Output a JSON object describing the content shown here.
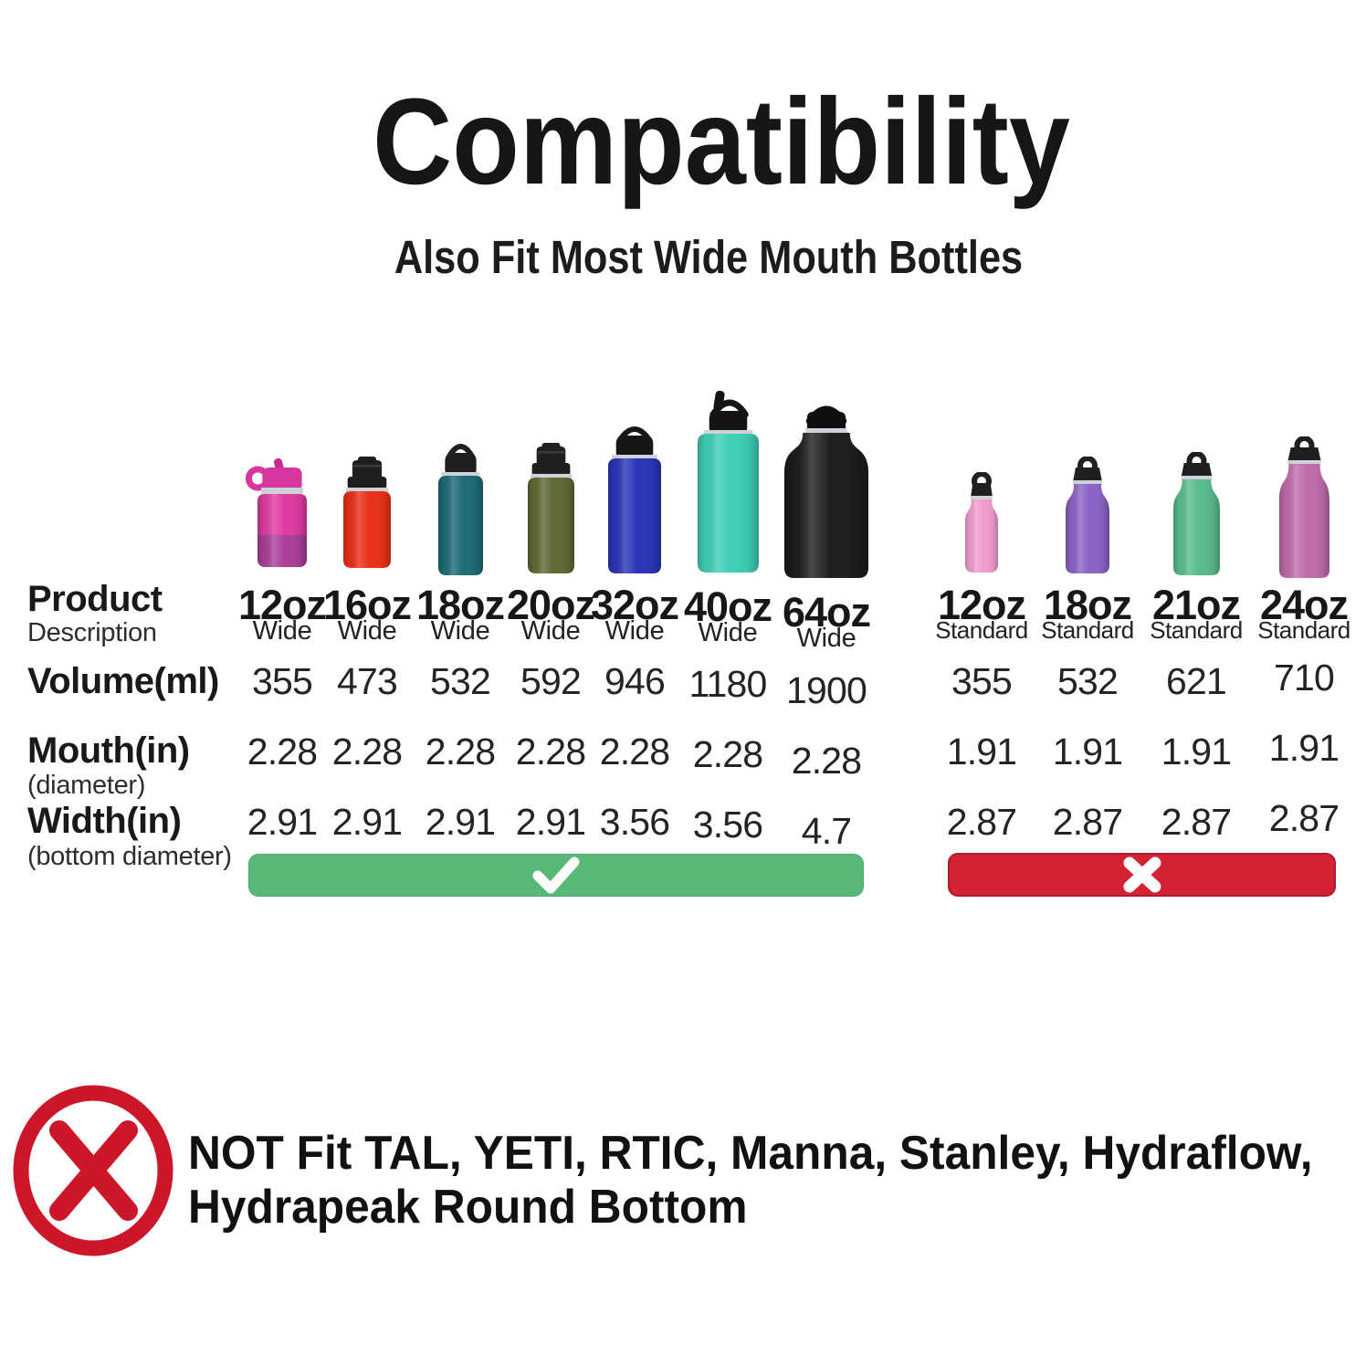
{
  "header": {
    "title": "Compatibility",
    "subtitle": "Also Fit Most Wide Mouth Bottles"
  },
  "row_labels": {
    "product_main": "Product",
    "product_sub": "Description",
    "volume_main": "Volume(ml)",
    "mouth_main": "Mouth(in)",
    "mouth_sub": "(diameter)",
    "width_main": "Width(in)",
    "width_sub": "(bottom diameter)"
  },
  "groups": [
    {
      "id": "wide",
      "fit": true,
      "bar_color": "#58b877",
      "bar_icon": "check-icon",
      "columns": [
        {
          "size": "12oz",
          "type": "Wide",
          "volume": "355",
          "mouth": "2.28",
          "width": "2.91",
          "bottle": {
            "style": "kids-straw",
            "body": "#df3ba3",
            "boot": "#ab3f99",
            "cap": "#d935a0",
            "straw": "#c52e90",
            "accent": "#ccd2d8"
          }
        },
        {
          "size": "16oz",
          "type": "Wide",
          "volume": "473",
          "mouth": "2.28",
          "width": "2.91",
          "bottle": {
            "style": "flip",
            "body": "#e93019",
            "cap": "#1e1e1e",
            "accent": "#ccd2d8"
          }
        },
        {
          "size": "18oz",
          "type": "Wide",
          "volume": "532",
          "mouth": "2.28",
          "width": "2.91",
          "bottle": {
            "style": "flex",
            "body": "#1d6b76",
            "cap": "#1f1f1f",
            "accent": "#ccd2d8"
          }
        },
        {
          "size": "20oz",
          "type": "Wide",
          "volume": "592",
          "mouth": "2.28",
          "width": "2.91",
          "bottle": {
            "style": "flip",
            "body": "#5f6a34",
            "cap": "#1f1f1f",
            "accent": "#ccd2d8"
          }
        },
        {
          "size": "32oz",
          "type": "Wide",
          "volume": "946",
          "mouth": "2.28",
          "width": "3.56",
          "bottle": {
            "style": "flex",
            "body": "#2b35b7",
            "cap": "#161616",
            "accent": "#ccd2d8"
          }
        },
        {
          "size": "40oz",
          "type": "Wide",
          "volume": "1180",
          "mouth": "2.28",
          "width": "3.56",
          "bottle": {
            "style": "straw-flex",
            "body": "#3ecfb6",
            "cap": "#141414",
            "accent": "#ccd2d8"
          }
        },
        {
          "size": "64oz",
          "type": "Wide",
          "volume": "1900",
          "mouth": "2.28",
          "width": "4.7",
          "bottle": {
            "style": "growler",
            "body": "#1d1d1d",
            "cap": "#0f0f0f",
            "accent": "#ccd2d8"
          }
        }
      ]
    },
    {
      "id": "standard",
      "fit": false,
      "bar_color": "#d52134",
      "bar_icon": "x-icon",
      "columns": [
        {
          "size": "12oz",
          "type": "Standard",
          "volume": "355",
          "mouth": "1.91",
          "width": "2.87",
          "bottle": {
            "style": "loop",
            "body": "#f09cce",
            "cap": "#1f1f1f",
            "accent": "#ccd2d8"
          }
        },
        {
          "size": "18oz",
          "type": "Standard",
          "volume": "532",
          "mouth": "1.91",
          "width": "2.87",
          "bottle": {
            "style": "loop",
            "body": "#8a63c5",
            "cap": "#1f1f1f",
            "accent": "#ccd2d8"
          }
        },
        {
          "size": "21oz",
          "type": "Standard",
          "volume": "621",
          "mouth": "1.91",
          "width": "2.87",
          "bottle": {
            "style": "loop",
            "body": "#59bc8c",
            "cap": "#1f1f1f",
            "accent": "#ccd2d8"
          }
        },
        {
          "size": "24oz",
          "type": "Standard",
          "volume": "710",
          "mouth": "1.91",
          "width": "2.87",
          "bottle": {
            "style": "loop",
            "body": "#bf6cab",
            "cap": "#1f1f1f",
            "accent": "#ccd2d8"
          }
        }
      ]
    }
  ],
  "footer": {
    "icon": "x-circle-icon",
    "icon_color": "#cd1628",
    "line1": "NOT Fit TAL, YETI, RTIC, Manna, Stanley, Hydraflow,",
    "line2": "Hydrapeak Round Bottom"
  },
  "chart_data": {
    "type": "table",
    "title": "Compatibility",
    "subtitle": "Also Fit Most Wide Mouth Bottles",
    "columns": [
      "12oz Wide",
      "16oz Wide",
      "18oz Wide",
      "20oz Wide",
      "32oz Wide",
      "40oz Wide",
      "64oz Wide",
      "12oz Standard",
      "18oz Standard",
      "21oz Standard",
      "24oz Standard"
    ],
    "rows": [
      {
        "label": "Volume(ml)",
        "values": [
          355,
          473,
          532,
          592,
          946,
          1180,
          1900,
          355,
          532,
          621,
          710
        ]
      },
      {
        "label": "Mouth(in) (diameter)",
        "values": [
          2.28,
          2.28,
          2.28,
          2.28,
          2.28,
          2.28,
          2.28,
          1.91,
          1.91,
          1.91,
          1.91
        ]
      },
      {
        "label": "Width(in) (bottom diameter)",
        "values": [
          2.91,
          2.91,
          2.91,
          2.91,
          3.56,
          3.56,
          4.7,
          2.87,
          2.87,
          2.87,
          2.87
        ]
      }
    ],
    "fit_result": {
      "wide_mouth": true,
      "standard_mouth": false
    },
    "annotation": "NOT Fit TAL, YETI, RTIC, Manna, Stanley, Hydraflow, Hydrapeak Round Bottom"
  }
}
